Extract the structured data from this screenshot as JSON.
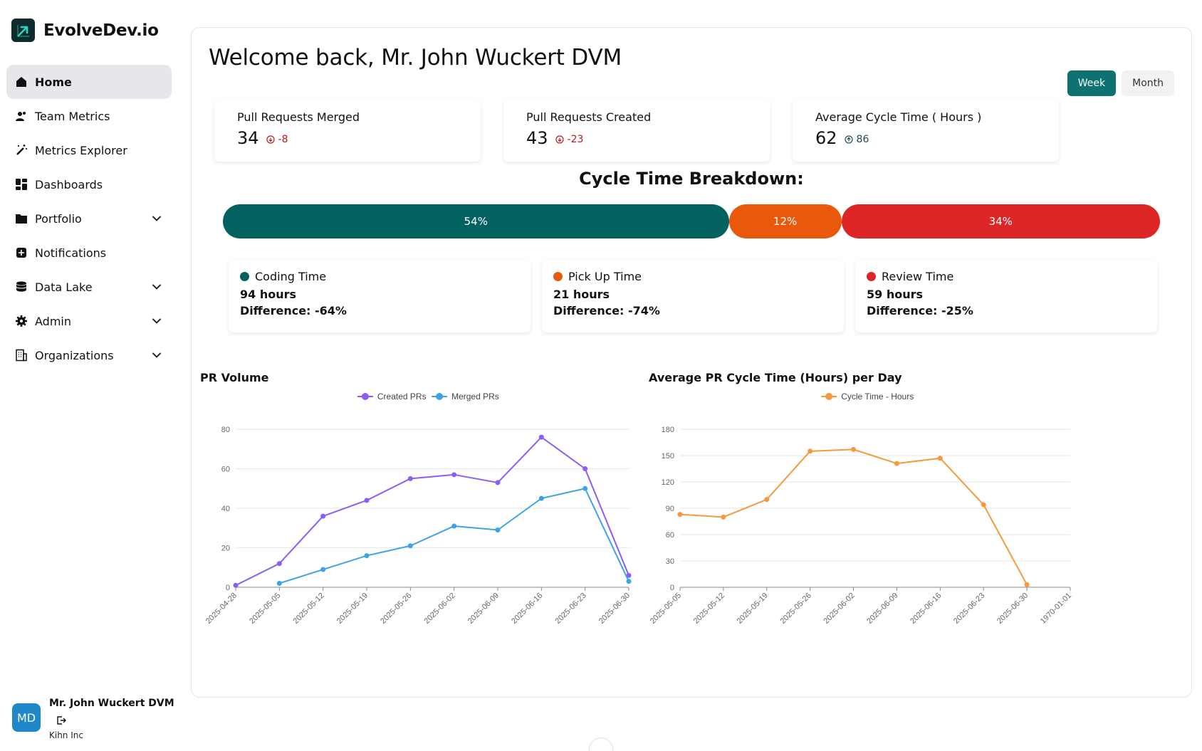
{
  "app": {
    "name": "EvolveDev.io"
  },
  "sidebar": {
    "items": [
      {
        "label": "Home",
        "icon": "home-icon",
        "active": true,
        "expandable": false
      },
      {
        "label": "Team Metrics",
        "icon": "team-icon",
        "active": false,
        "expandable": false
      },
      {
        "label": "Metrics Explorer",
        "icon": "magic-wand-icon",
        "active": false,
        "expandable": false
      },
      {
        "label": "Dashboards",
        "icon": "dashboard-icon",
        "active": false,
        "expandable": false
      },
      {
        "label": "Portfolio",
        "icon": "folder-icon",
        "active": false,
        "expandable": true
      },
      {
        "label": "Notifications",
        "icon": "notification-icon",
        "active": false,
        "expandable": false
      },
      {
        "label": "Data Lake",
        "icon": "database-icon",
        "active": false,
        "expandable": true
      },
      {
        "label": "Admin",
        "icon": "gear-icon",
        "active": false,
        "expandable": true
      },
      {
        "label": "Organizations",
        "icon": "building-icon",
        "active": false,
        "expandable": true
      }
    ]
  },
  "user": {
    "initials": "MD",
    "name": "Mr. John Wuckert DVM",
    "org": "Kihn Inc"
  },
  "main": {
    "welcome": "Welcome back, Mr. John Wuckert DVM",
    "period_toggle": {
      "week": "Week",
      "month": "Month",
      "selected": "Week"
    },
    "stats": [
      {
        "label": "Pull Requests Merged",
        "value": "34",
        "delta": "-8",
        "direction": "down"
      },
      {
        "label": "Pull Requests Created",
        "value": "43",
        "delta": "-23",
        "direction": "down"
      },
      {
        "label": "Average Cycle Time ( Hours )",
        "value": "62",
        "delta": "86",
        "direction": "up"
      }
    ],
    "cycle_breakdown": {
      "title": "Cycle Time Breakdown:",
      "segments": [
        {
          "label": "54%",
          "percent": 54,
          "color": "#03625f"
        },
        {
          "label": "12%",
          "percent": 12,
          "color": "#ea580c"
        },
        {
          "label": "34%",
          "percent": 34,
          "color": "#dc2626"
        }
      ],
      "cards": [
        {
          "name": "Coding Time",
          "hours": "94 hours",
          "difference": "Difference: -64%",
          "color": "#03625f"
        },
        {
          "name": "Pick Up Time",
          "hours": "21 hours",
          "difference": "Difference: -74%",
          "color": "#ea580c"
        },
        {
          "name": "Review Time",
          "hours": "59 hours",
          "difference": "Difference: -25%",
          "color": "#dc2626"
        }
      ]
    }
  },
  "chart_data": [
    {
      "type": "line",
      "title": "PR Volume",
      "categories": [
        "2025-04-28",
        "2025-05-05",
        "2025-05-12",
        "2025-05-19",
        "2025-05-26",
        "2025-06-02",
        "2025-06-09",
        "2025-06-16",
        "2025-06-23",
        "2025-06-30"
      ],
      "series": [
        {
          "name": "Created PRs",
          "color": "#8b5cf6",
          "values": [
            1,
            12,
            36,
            44,
            55,
            57,
            53,
            76,
            60,
            6
          ]
        },
        {
          "name": "Merged PRs",
          "color": "#3ba3e6",
          "values": [
            null,
            2,
            9,
            16,
            21,
            31,
            29,
            45,
            50,
            3
          ]
        }
      ],
      "yticks": [
        0,
        20,
        40,
        60,
        80
      ],
      "ylim": [
        0,
        80
      ],
      "legend": "top-center",
      "grid": true
    },
    {
      "type": "line",
      "title": "Average PR Cycle Time (Hours) per Day",
      "categories": [
        "2025-05-05",
        "2025-05-12",
        "2025-05-19",
        "2025-05-26",
        "2025-06-02",
        "2025-06-09",
        "2025-06-16",
        "2025-06-23",
        "2025-06-30",
        "1970-01-01"
      ],
      "series": [
        {
          "name": "Cycle Time - Hours",
          "color": "#f59a3c",
          "values": [
            83,
            80,
            100,
            155,
            157,
            141,
            147,
            94,
            3,
            null
          ]
        }
      ],
      "yticks": [
        0,
        30,
        60,
        90,
        120,
        150,
        180
      ],
      "ylim": [
        0,
        180
      ],
      "legend": "top-center",
      "grid": true
    }
  ]
}
